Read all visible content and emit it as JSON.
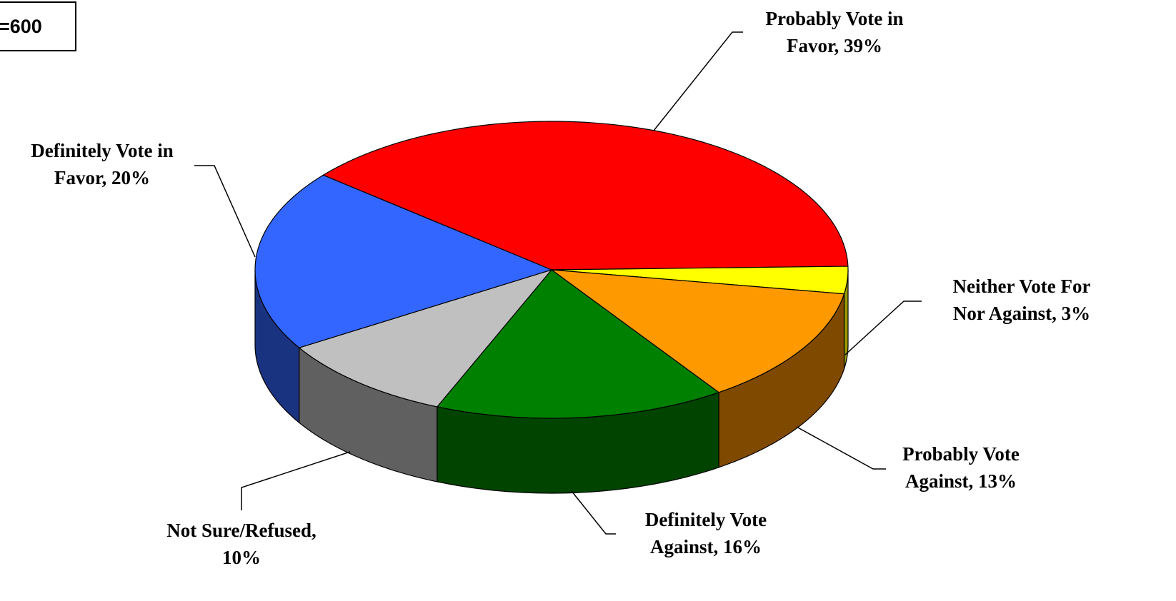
{
  "sample_size_label": "=600",
  "chart_data": {
    "type": "pie",
    "title": "",
    "style": "3d-exploded-free",
    "unit": "%",
    "slices": [
      {
        "name": "Probably Vote in Favor",
        "value": 39,
        "color": "#ff0000",
        "side_color": "#a00000",
        "label_lines": [
          "Probably Vote in",
          "Favor, 39%"
        ]
      },
      {
        "name": "Neither Vote For Nor Against",
        "value": 3,
        "color": "#ffff00",
        "side_color": "#9a9a00",
        "label_lines": [
          "Neither Vote For",
          "Nor Against, 3%"
        ]
      },
      {
        "name": "Probably Vote Against",
        "value": 13,
        "color": "#ff9900",
        "side_color": "#7f4a00",
        "label_lines": [
          "Probably Vote",
          "Against, 13%"
        ]
      },
      {
        "name": "Definitely Vote Against",
        "value": 16,
        "color": "#008000",
        "side_color": "#004400",
        "label_lines": [
          "Definitely Vote",
          "Against, 16%"
        ]
      },
      {
        "name": "Not Sure/Refused",
        "value": 10,
        "color": "#c0c0c0",
        "side_color": "#606060",
        "label_lines": [
          "Not Sure/Refused,",
          "10%"
        ]
      },
      {
        "name": "Definitely Vote in Favor",
        "value": 20,
        "color": "#3366ff",
        "side_color": "#1a3380",
        "label_lines": [
          "Definitely Vote in",
          "Favor, 20%"
        ]
      }
    ]
  }
}
